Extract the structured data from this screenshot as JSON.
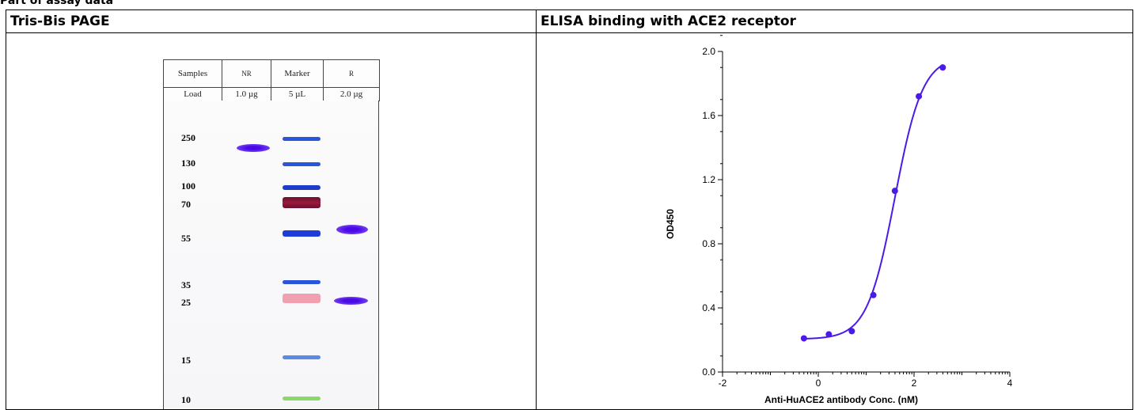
{
  "page": {
    "section_title": "Part of assay data"
  },
  "panels": {
    "left_title": "Tris-Bis PAGE",
    "right_title": "ELISA binding with ACE2 receptor"
  },
  "gel": {
    "header": [
      "Samples",
      "NR",
      "Marker",
      "R"
    ],
    "load": [
      "Load",
      "1.0 µg",
      "5 µL",
      "2.0 µg"
    ],
    "markers": [
      {
        "label": "250",
        "color": "#1a1aa8"
      },
      {
        "label": "130",
        "color": "#1a1aa8"
      },
      {
        "label": "100",
        "color": "#1a1aa8"
      },
      {
        "label": "70",
        "color": "#9b1a1a"
      },
      {
        "label": "55",
        "color": "#1a1aa8"
      },
      {
        "label": "35",
        "color": "#1a1aa8"
      },
      {
        "label": "25",
        "color": "#9b1a1a"
      },
      {
        "label": "15",
        "color": "#1a1aa8"
      },
      {
        "label": "10",
        "color": "#2aa84a"
      }
    ],
    "colors": {
      "sample_band": "#5a14e8",
      "marker_blue": "#2a55d8",
      "marker_red": "#8a1a2a",
      "marker_pink": "#e88a9a",
      "marker_light": "#5a8ae8",
      "marker_green": "#8ad86a"
    }
  },
  "chart_data": {
    "type": "scatter",
    "title": "",
    "xlabel": "Anti-HuACE2 antibody Conc. (nM)",
    "ylabel": "OD450",
    "xlim": [
      -2,
      4
    ],
    "ylim": [
      0.0,
      2.0
    ],
    "xticks": [
      "-2",
      "0",
      "2",
      "4"
    ],
    "yticks": [
      "0.0",
      "0.4",
      "0.8",
      "1.2",
      "1.6",
      "2.0"
    ],
    "series": [
      {
        "points": [
          {
            "x": -0.3,
            "y": 0.21
          },
          {
            "x": 0.22,
            "y": 0.235
          },
          {
            "x": 0.7,
            "y": 0.255
          },
          {
            "x": 1.15,
            "y": 0.48
          },
          {
            "x": 1.6,
            "y": 1.13
          },
          {
            "x": 2.1,
            "y": 1.72
          },
          {
            "x": 2.6,
            "y": 1.9
          }
        ],
        "color": "#4a1ae8"
      }
    ],
    "fit": {
      "bottom": 0.205,
      "top": 1.97,
      "logEC50": 1.6,
      "hill": 1.5
    }
  }
}
